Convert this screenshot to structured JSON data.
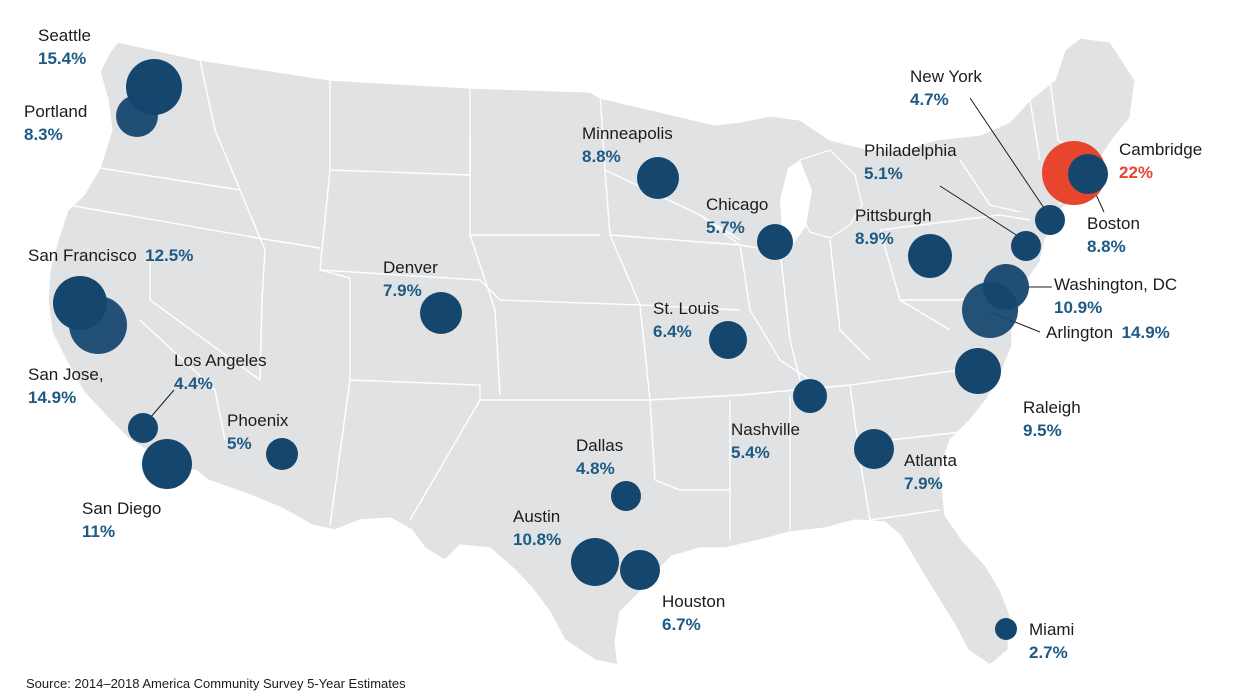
{
  "colors": {
    "land": "#e1e2e4",
    "borders": "#ffffff",
    "bubble": "#15466e",
    "highlight": "#e8452e",
    "value_text": "#1d5a84"
  },
  "source": "Source: 2014–2018 America Community Survey 5-Year Estimates",
  "cities": [
    {
      "id": "seattle",
      "name": "Seattle",
      "value": "15.4%",
      "highlight": false
    },
    {
      "id": "portland",
      "name": "Portland",
      "value": "8.3%",
      "highlight": false
    },
    {
      "id": "san-francisco",
      "name": "San Francisco",
      "value": "12.5%",
      "highlight": false
    },
    {
      "id": "san-jose",
      "name": "San Jose,",
      "value": "14.9%",
      "highlight": false
    },
    {
      "id": "los-angeles",
      "name": "Los Angeles",
      "value": "4.4%",
      "highlight": false
    },
    {
      "id": "san-diego",
      "name": "San Diego",
      "value": "11%",
      "highlight": false
    },
    {
      "id": "phoenix",
      "name": "Phoenix",
      "value": "5%",
      "highlight": false
    },
    {
      "id": "denver",
      "name": "Denver",
      "value": "7.9%",
      "highlight": false
    },
    {
      "id": "minneapolis",
      "name": "Minneapolis",
      "value": "8.8%",
      "highlight": false
    },
    {
      "id": "chicago",
      "name": "Chicago",
      "value": "5.7%",
      "highlight": false
    },
    {
      "id": "st-louis",
      "name": "St. Louis",
      "value": "6.4%",
      "highlight": false
    },
    {
      "id": "dallas",
      "name": "Dallas",
      "value": "4.8%",
      "highlight": false
    },
    {
      "id": "austin",
      "name": "Austin",
      "value": "10.8%",
      "highlight": false
    },
    {
      "id": "houston",
      "name": "Houston",
      "value": "6.7%",
      "highlight": false
    },
    {
      "id": "nashville",
      "name": "Nashville",
      "value": "5.4%",
      "highlight": false
    },
    {
      "id": "atlanta",
      "name": "Atlanta",
      "value": "7.9%",
      "highlight": false
    },
    {
      "id": "miami",
      "name": "Miami",
      "value": "2.7%",
      "highlight": false
    },
    {
      "id": "raleigh",
      "name": "Raleigh",
      "value": "9.5%",
      "highlight": false
    },
    {
      "id": "pittsburgh",
      "name": "Pittsburgh",
      "value": "8.9%",
      "highlight": false
    },
    {
      "id": "philadelphia",
      "name": "Philadelphia",
      "value": "5.1%",
      "highlight": false
    },
    {
      "id": "new-york",
      "name": "New York",
      "value": "4.7%",
      "highlight": false
    },
    {
      "id": "cambridge",
      "name": "Cambridge",
      "value": "22%",
      "highlight": true
    },
    {
      "id": "boston",
      "name": "Boston",
      "value": "8.8%",
      "highlight": false
    },
    {
      "id": "washington-dc",
      "name": "Washington, DC",
      "value": "10.9%",
      "highlight": false
    },
    {
      "id": "arlington",
      "name": "Arlington",
      "value": "14.9%",
      "highlight": false
    }
  ]
}
